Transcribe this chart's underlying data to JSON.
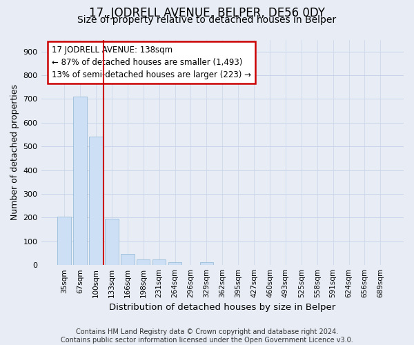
{
  "title": "17, JODRELL AVENUE, BELPER, DE56 0DY",
  "subtitle": "Size of property relative to detached houses in Belper",
  "xlabel": "Distribution of detached houses by size in Belper",
  "ylabel": "Number of detached properties",
  "categories": [
    "35sqm",
    "67sqm",
    "100sqm",
    "133sqm",
    "166sqm",
    "198sqm",
    "231sqm",
    "264sqm",
    "296sqm",
    "329sqm",
    "362sqm",
    "395sqm",
    "427sqm",
    "460sqm",
    "493sqm",
    "525sqm",
    "558sqm",
    "591sqm",
    "624sqm",
    "656sqm",
    "689sqm"
  ],
  "values": [
    205,
    710,
    540,
    195,
    47,
    23,
    23,
    13,
    0,
    13,
    0,
    0,
    0,
    0,
    0,
    0,
    0,
    0,
    0,
    0,
    0
  ],
  "bar_color": "#ccdff5",
  "bar_edge_color": "#9abdd8",
  "vline_index": 2.5,
  "vline_color": "#cc0000",
  "annotation_text": "17 JODRELL AVENUE: 138sqm\n← 87% of detached houses are smaller (1,493)\n13% of semi-detached houses are larger (223) →",
  "annotation_box_color": "white",
  "annotation_box_edge": "#cc0000",
  "ylim": [
    0,
    950
  ],
  "yticks": [
    0,
    100,
    200,
    300,
    400,
    500,
    600,
    700,
    800,
    900
  ],
  "grid_color": "#c8d4e8",
  "bg_color": "#e8edf5",
  "footer": "Contains HM Land Registry data © Crown copyright and database right 2024.\nContains public sector information licensed under the Open Government Licence v3.0.",
  "title_fontsize": 12,
  "subtitle_fontsize": 10,
  "footer_fontsize": 7
}
